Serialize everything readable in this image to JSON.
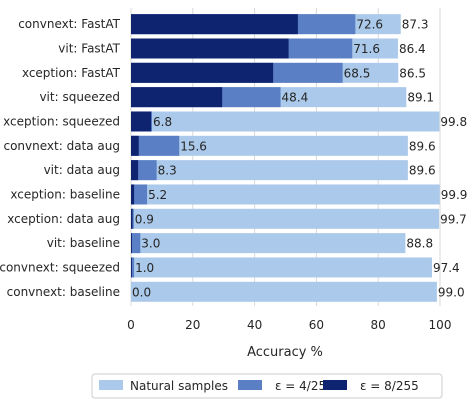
{
  "chart_data": {
    "type": "bar",
    "orientation": "horizontal",
    "layout": "overlaid",
    "categories": [
      "convnext: FastAT",
      "vit: FastAT",
      "xception: FastAT",
      "vit: squeezed",
      "xception: squeezed",
      "convnext: data aug",
      "vit: data aug",
      "xception: baseline",
      "xception: data aug",
      "vit: baseline",
      "convnext: squeezed",
      "convnext: baseline"
    ],
    "series": [
      {
        "name": "Natural samples",
        "color": "#abc9ea",
        "values": [
          87.3,
          86.4,
          86.5,
          89.1,
          99.8,
          89.6,
          89.6,
          99.9,
          99.7,
          88.8,
          97.4,
          99.0
        ],
        "labels": [
          "87.3",
          "86.4",
          "86.5",
          "89.1",
          "99.8",
          "89.6",
          "89.6",
          "99.9",
          "99.7",
          "88.8",
          "97.4",
          "99.0"
        ]
      },
      {
        "name": "ε = 4/255",
        "color": "#5a7fc4",
        "values": [
          72.6,
          71.6,
          68.5,
          48.4,
          6.8,
          15.6,
          8.3,
          5.2,
          0.9,
          3.0,
          1.0,
          0.0
        ],
        "labels": [
          "72.6",
          "71.6",
          "68.5",
          "48.4",
          "6.8",
          "15.6",
          "8.3",
          "5.2",
          "0.9",
          "3.0",
          "1.0",
          "0.0"
        ]
      },
      {
        "name": "ε = 8/255",
        "color": "#0f2470",
        "values": [
          54.0,
          51.0,
          46.0,
          29.5,
          6.5,
          2.5,
          2.3,
          1.0,
          0.5,
          0.3,
          0.3,
          0.0
        ]
      }
    ],
    "xlabel": "Accuracy %",
    "xlim": [
      0,
      100
    ],
    "xticks": [
      "0",
      "20",
      "40",
      "60",
      "80",
      "100"
    ],
    "grid": true,
    "legend_position": "bottom-center"
  }
}
